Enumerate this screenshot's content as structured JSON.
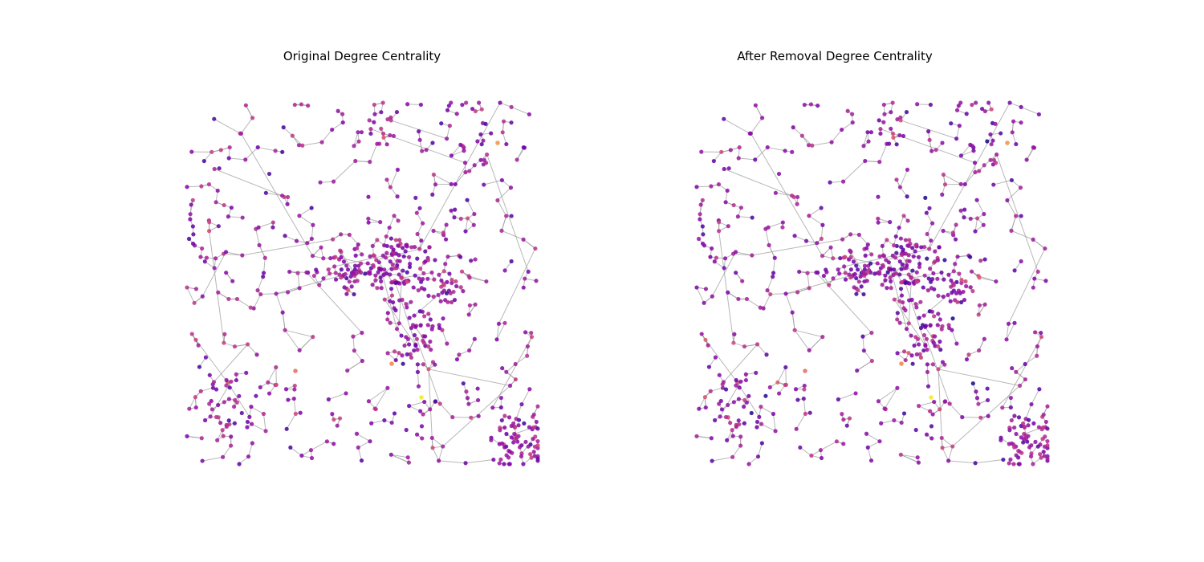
{
  "figure": {
    "panels": [
      {
        "title": "Original Degree Centrality",
        "removed": false
      },
      {
        "title": "After Removal Degree Centrality",
        "removed": true
      }
    ]
  },
  "colors": {
    "colormap": "plasma",
    "edge": "#999999",
    "background": "#ffffff"
  },
  "chart_data": {
    "type": "network",
    "layout": "graph with roughly 900 nodes; node colour encodes degree centrality (plasma colormap)",
    "colormap": "plasma",
    "panels": [
      "Original Degree Centrality",
      "After Removal Degree Centrality"
    ],
    "axes": "off"
  }
}
